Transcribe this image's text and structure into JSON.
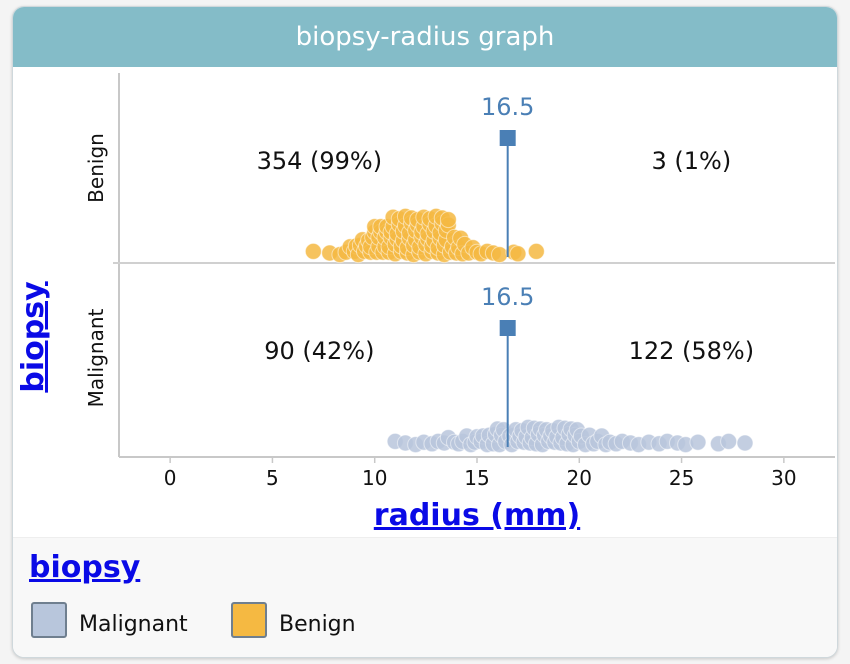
{
  "window": {
    "title": "biopsy-radius graph"
  },
  "chart_data": {
    "type": "scatter",
    "title": "biopsy-radius graph",
    "xlabel": "radius (mm)",
    "ylabel": "biopsy",
    "xlim": [
      -2.5,
      32.5
    ],
    "xticks": [
      0,
      5,
      10,
      15,
      20,
      25,
      30
    ],
    "categories": [
      "Benign",
      "Malignant"
    ],
    "divider_value": 16.5,
    "divider_label": "16.5",
    "counts": {
      "Benign": {
        "left": "354 (99%)",
        "right": "3 (1%)"
      },
      "Malignant": {
        "left": "90 (42%)",
        "right": "122 (58%)"
      }
    },
    "series": [
      {
        "name": "Benign",
        "color": "#f5b942",
        "values": [
          7.0,
          7.8,
          8.3,
          8.6,
          8.8,
          9.0,
          9.1,
          9.2,
          9.3,
          9.4,
          9.5,
          9.6,
          9.7,
          9.8,
          9.8,
          9.9,
          10.0,
          10.0,
          10.1,
          10.2,
          10.2,
          10.3,
          10.3,
          10.4,
          10.5,
          10.5,
          10.6,
          10.6,
          10.7,
          10.7,
          10.8,
          10.8,
          10.9,
          10.9,
          11.0,
          11.0,
          11.1,
          11.1,
          11.2,
          11.2,
          11.3,
          11.3,
          11.4,
          11.4,
          11.5,
          11.5,
          11.6,
          11.6,
          11.7,
          11.7,
          11.8,
          11.8,
          11.9,
          11.9,
          12.0,
          12.0,
          12.1,
          12.1,
          12.2,
          12.2,
          12.3,
          12.3,
          12.4,
          12.4,
          12.5,
          12.5,
          12.6,
          12.6,
          12.7,
          12.7,
          12.8,
          12.8,
          12.9,
          12.9,
          13.0,
          13.0,
          13.1,
          13.1,
          13.2,
          13.2,
          13.3,
          13.3,
          13.4,
          13.4,
          13.5,
          13.5,
          13.6,
          13.6,
          13.7,
          13.8,
          13.9,
          14.0,
          14.1,
          14.2,
          14.3,
          14.4,
          14.6,
          14.8,
          15.0,
          15.2,
          15.5,
          15.8,
          16.1,
          16.8,
          17.0,
          17.9
        ]
      },
      {
        "name": "Malignant",
        "color": "#b8c6dc",
        "values": [
          11.0,
          11.5,
          12.0,
          12.4,
          12.8,
          13.1,
          13.4,
          13.6,
          13.9,
          14.1,
          14.3,
          14.5,
          14.7,
          14.9,
          15.0,
          15.2,
          15.3,
          15.5,
          15.6,
          15.8,
          15.9,
          16.0,
          16.1,
          16.2,
          16.3,
          16.4,
          16.6,
          16.7,
          16.8,
          16.9,
          17.0,
          17.1,
          17.2,
          17.3,
          17.4,
          17.5,
          17.6,
          17.7,
          17.8,
          17.9,
          18.0,
          18.1,
          18.2,
          18.3,
          18.4,
          18.5,
          18.6,
          18.7,
          18.8,
          18.9,
          19.0,
          19.1,
          19.2,
          19.3,
          19.4,
          19.5,
          19.6,
          19.7,
          19.8,
          19.9,
          20.0,
          20.1,
          20.3,
          20.5,
          20.7,
          20.9,
          21.1,
          21.3,
          21.5,
          21.8,
          22.1,
          22.5,
          22.9,
          23.4,
          23.9,
          24.3,
          24.8,
          25.2,
          25.8,
          26.8,
          27.3,
          28.1
        ]
      }
    ]
  },
  "legend": {
    "title": "biopsy",
    "items": [
      {
        "label": "Malignant",
        "color": "#b8c6dc"
      },
      {
        "label": "Benign",
        "color": "#f5b942"
      }
    ]
  }
}
